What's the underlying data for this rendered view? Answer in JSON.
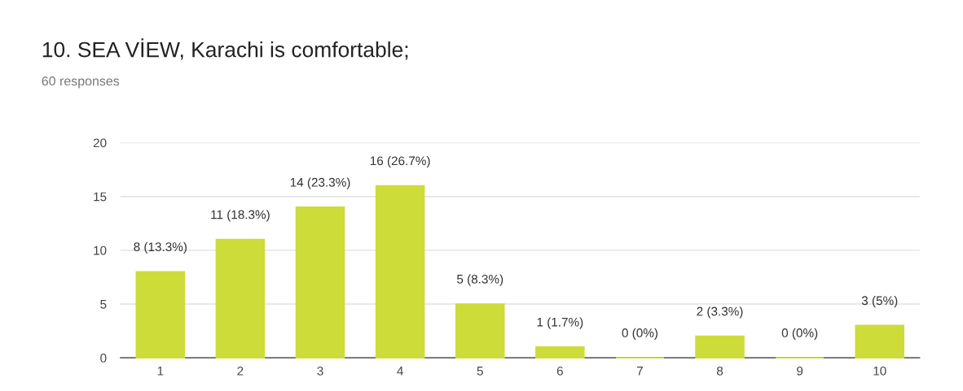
{
  "chart_data": {
    "type": "bar",
    "title": "10. SEA VİEW, Karachi is comfortable;",
    "subtitle": "60 responses",
    "categories": [
      "1",
      "2",
      "3",
      "4",
      "5",
      "6",
      "7",
      "8",
      "9",
      "10"
    ],
    "values": [
      8,
      11,
      14,
      16,
      5,
      1,
      0,
      2,
      0,
      3
    ],
    "value_labels": [
      "8 (13.3%)",
      "11 (18.3%)",
      "14 (23.3%)",
      "16 (26.7%)",
      "5 (8.3%)",
      "1 (1.7%)",
      "0 (0%)",
      "2 (3.3%)",
      "0 (0%)",
      "3 (5%)"
    ],
    "color": "#cddc39",
    "ylim": [
      0,
      20
    ],
    "yticks": [
      0,
      5,
      10,
      15,
      20
    ],
    "grid": "y"
  }
}
